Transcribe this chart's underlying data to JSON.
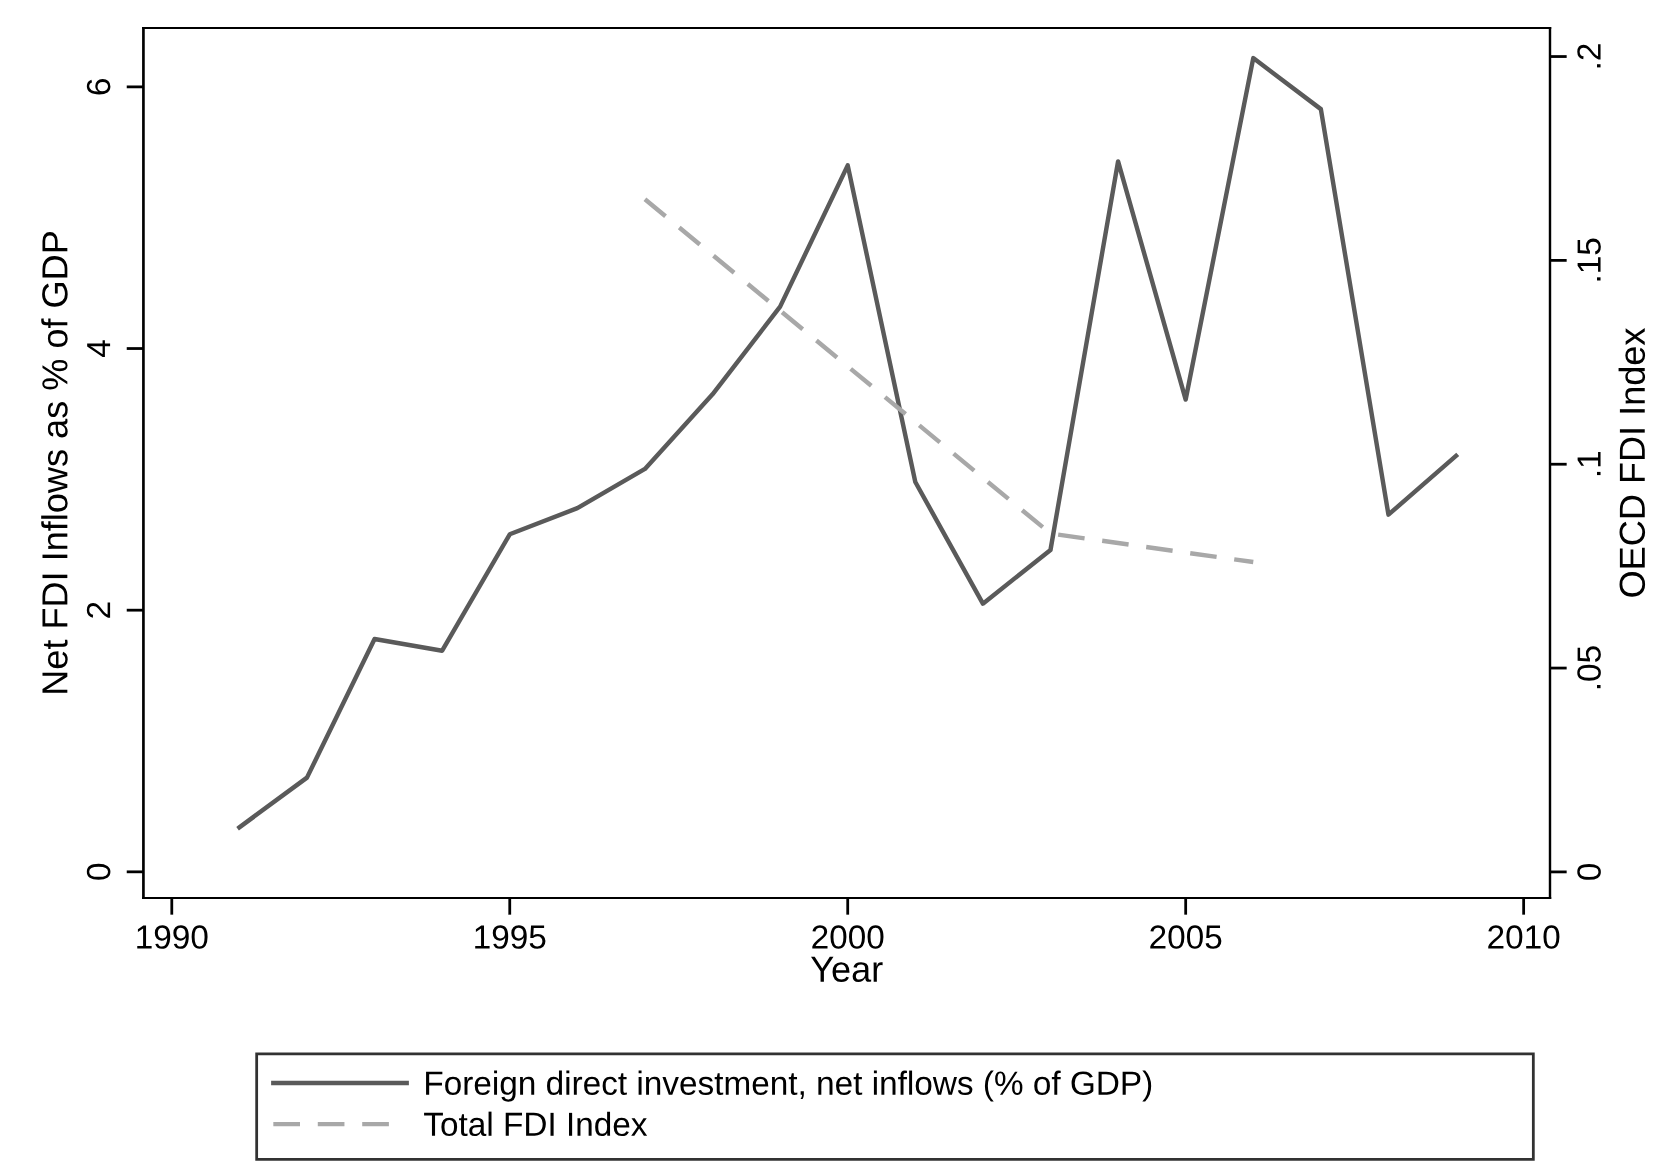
{
  "chart_data": {
    "type": "line",
    "xlabel": "Year",
    "ylabel": "Net FDI Inflows as % of GDP",
    "y2label": "OECD FDI Index",
    "xlim": [
      1989.58,
      2010.39
    ],
    "xticks": [
      1990,
      1995,
      2000,
      2005,
      2010
    ],
    "ylim": [
      -0.2,
      6.45
    ],
    "yticks": [
      0,
      2,
      4,
      6
    ],
    "y2lim": [
      -0.0064,
      0.207
    ],
    "y2ticks": [
      {
        "value": 0,
        "label": "0"
      },
      {
        "value": 0.05,
        "label": ".05"
      },
      {
        "value": 0.1,
        "label": ".1"
      },
      {
        "value": 0.15,
        "label": ".15"
      },
      {
        "value": 0.2,
        "label": ".2"
      }
    ],
    "grid": false,
    "legend": "bottom",
    "marker": "none",
    "series": [
      {
        "name": "Foreign direct investment, net inflows (% of GDP)",
        "color": "#5a5a5a",
        "line_style": "solid",
        "x": [
          1991,
          1992,
          1993,
          1994,
          1995,
          1996,
          1997,
          1998,
          1999,
          2000,
          2001,
          2002,
          2003,
          2004,
          2005,
          2006,
          2007,
          2008,
          2009
        ],
        "values": [
          0.34,
          0.72,
          1.78,
          1.69,
          2.58,
          2.78,
          3.08,
          3.65,
          4.32,
          5.4,
          2.98,
          2.05,
          2.46,
          5.43,
          3.61,
          6.22,
          5.83,
          2.73,
          3.18
        ]
      },
      {
        "name": "Total FDI Index",
        "color": "#a8a8a8",
        "line_style": "dashed",
        "axis": "y2",
        "x": [
          1997,
          2003,
          2006
        ],
        "values": [
          0.165,
          0.083,
          0.076
        ]
      }
    ]
  }
}
